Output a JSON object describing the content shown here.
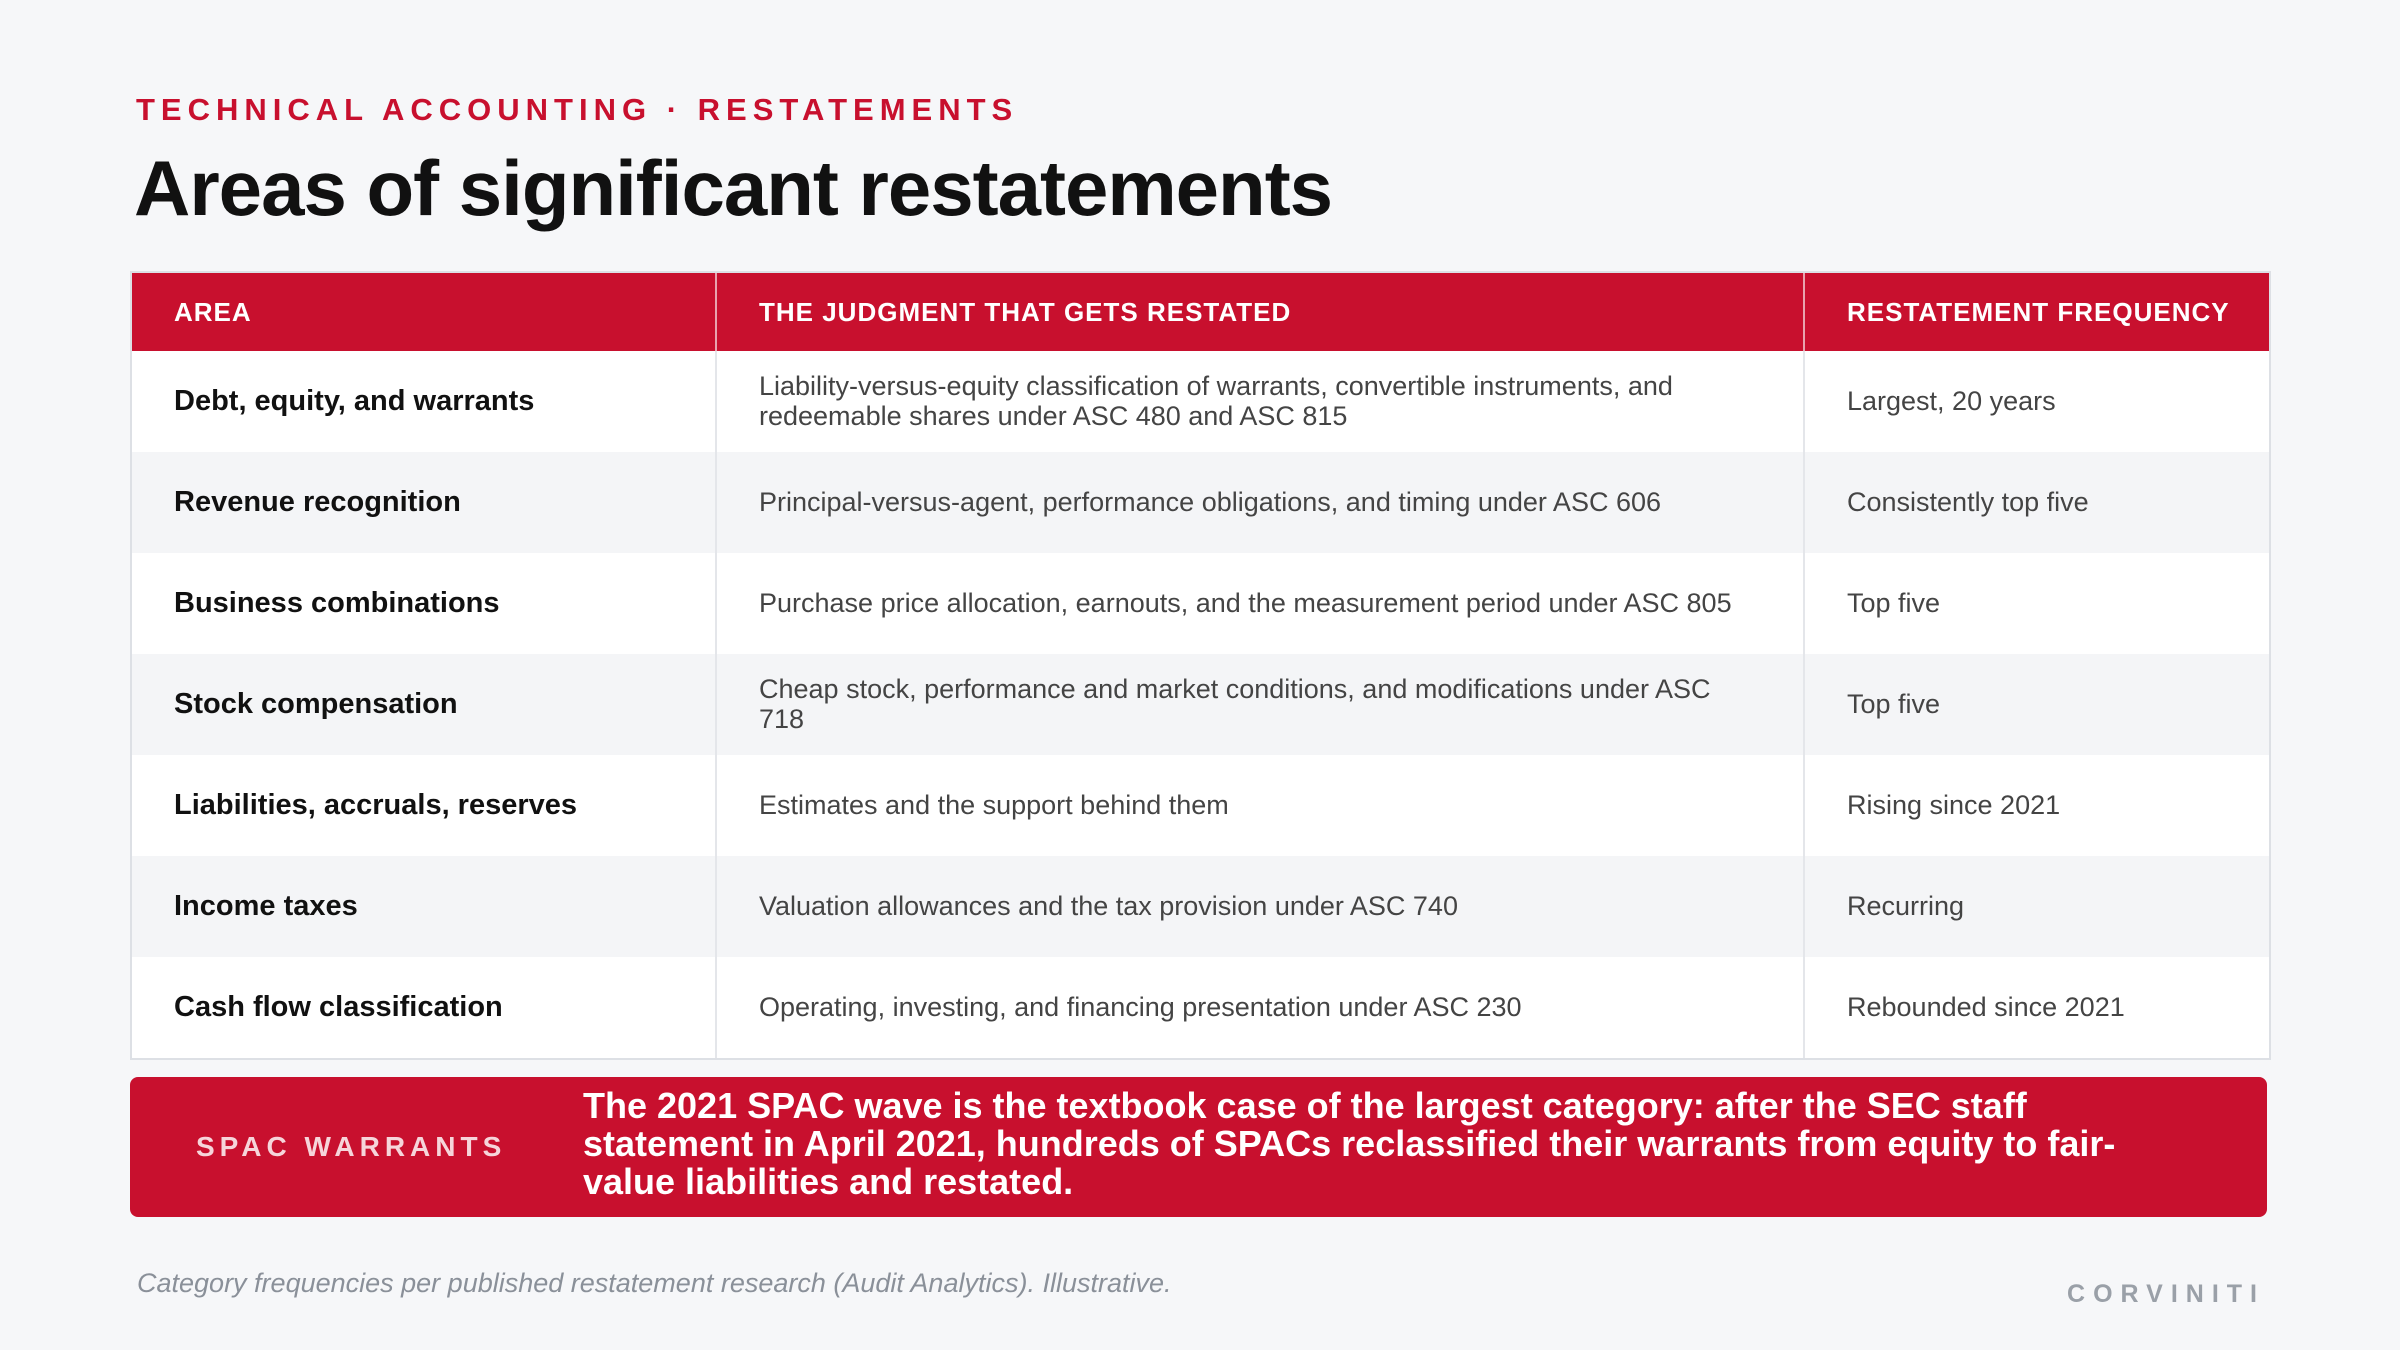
{
  "eyebrow": "TECHNICAL ACCOUNTING · RESTATEMENTS",
  "title": "Areas of significant restatements",
  "table": {
    "headers": [
      "AREA",
      "THE JUDGMENT THAT GETS RESTATED",
      "RESTATEMENT FREQUENCY"
    ],
    "rows": [
      {
        "area": "Debt, equity, and warrants",
        "judgment": "Liability-versus-equity classification of warrants, convertible instruments, and redeemable shares under ASC 480 and ASC 815",
        "frequency": "Largest, 20 years"
      },
      {
        "area": "Revenue recognition",
        "judgment": "Principal-versus-agent, performance obligations, and timing under ASC 606",
        "frequency": "Consistently top five"
      },
      {
        "area": "Business combinations",
        "judgment": "Purchase price allocation, earnouts, and the measurement period under ASC 805",
        "frequency": "Top five"
      },
      {
        "area": "Stock compensation",
        "judgment": "Cheap stock, performance and market conditions, and modifications under ASC 718",
        "frequency": "Top five"
      },
      {
        "area": "Liabilities, accruals, reserves",
        "judgment": "Estimates and the support behind them",
        "frequency": "Rising since 2021"
      },
      {
        "area": "Income taxes",
        "judgment": "Valuation allowances and the tax provision under ASC 740",
        "frequency": "Recurring"
      },
      {
        "area": "Cash flow classification",
        "judgment": "Operating, investing, and financing presentation under ASC 230",
        "frequency": "Rebounded since 2021"
      }
    ]
  },
  "callout": {
    "label": "SPAC WARRANTS",
    "text": "The 2021 SPAC wave is the textbook case of the largest category: after the SEC staff statement in April 2021, hundreds of SPACs reclassified their warrants from equity to fair-value liabilities and restated."
  },
  "footnote": "Category frequencies per published restatement research (Audit Analytics). Illustrative.",
  "brand": "CORVINITI",
  "colors": {
    "accent": "#c8102e",
    "background": "#f6f7f9",
    "muted": "#8a9099"
  }
}
